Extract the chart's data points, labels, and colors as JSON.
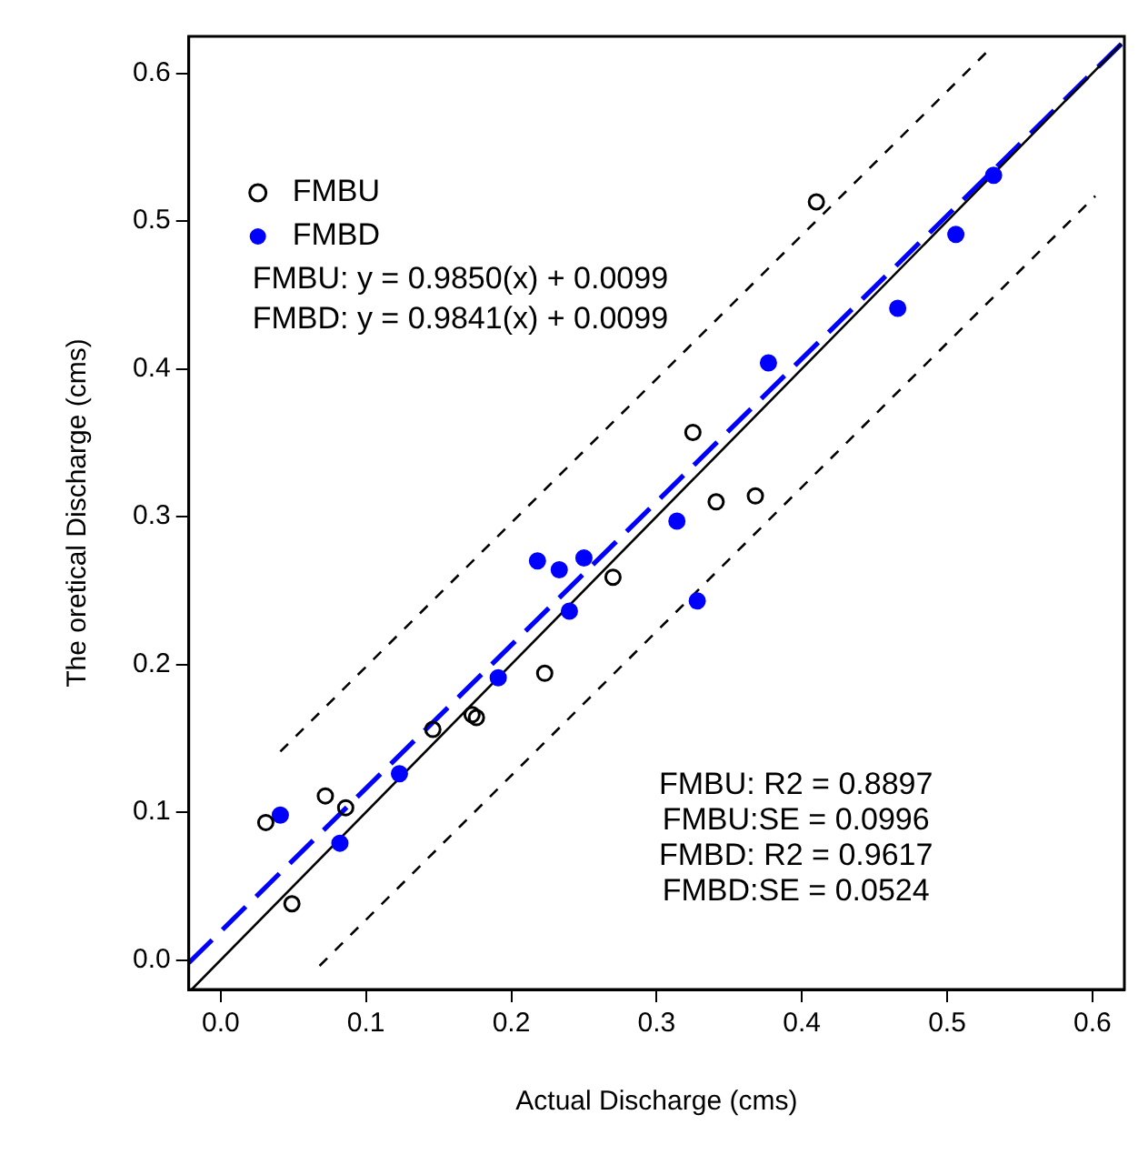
{
  "chart_data": {
    "type": "scatter",
    "xlabel": "Actual Discharge (cms)",
    "ylabel": "The oretical Discharge (cms)",
    "xlim": [
      -0.022,
      0.622
    ],
    "ylim": [
      -0.02,
      0.625
    ],
    "xticks": [
      {
        "value": 0,
        "label": "0.0"
      },
      0.1,
      0.2,
      0.3,
      0.4,
      0.5,
      0.6
    ],
    "yticks": [
      {
        "value": 0,
        "label": "0.0"
      },
      0.1,
      0.2,
      0.3,
      0.4,
      0.5,
      0.6
    ],
    "grid": false,
    "legend": "top left",
    "series": [
      {
        "name": "FMBU",
        "type": "scatter",
        "marker": "circle",
        "color": "#000000",
        "x": [
          0.031,
          0.072,
          0.086,
          0.049,
          0.146,
          0.173,
          0.176,
          0.223,
          0.27,
          0.41,
          0.325,
          0.341,
          0.368
        ],
        "values": [
          0.093,
          0.111,
          0.103,
          0.038,
          0.156,
          0.166,
          0.164,
          0.194,
          0.259,
          0.513,
          0.357,
          0.31,
          0.314
        ]
      },
      {
        "name": "FMBD",
        "type": "scatter",
        "marker": "circle",
        "color": "#0000ff",
        "x": [
          0.041,
          0.082,
          0.123,
          0.191,
          0.24,
          0.218,
          0.233,
          0.25,
          0.328,
          0.314,
          0.377,
          0.466,
          0.506,
          0.532
        ],
        "values": [
          0.098,
          0.079,
          0.126,
          0.191,
          0.236,
          0.27,
          0.264,
          0.272,
          0.243,
          0.297,
          0.404,
          0.441,
          0.491,
          0.531
        ]
      },
      {
        "type": "line",
        "marker": "none",
        "color": "#000000",
        "line_style": "solid",
        "x": [
          -0.02,
          0.62
        ],
        "values": [
          -0.02,
          0.62
        ]
      },
      {
        "type": "line",
        "marker": "none",
        "color": "#0000ff",
        "line_style": "dashed",
        "x": [
          -0.022,
          0.62
        ],
        "values": [
          -0.002,
          0.62
        ]
      },
      {
        "type": "line",
        "marker": "none",
        "color": "#000000",
        "line_style": "dotted",
        "x": [
          0.041,
          0.531
        ],
        "values": [
          0.141,
          0.618
        ]
      },
      {
        "type": "line",
        "marker": "none",
        "color": "#000000",
        "line_style": "dotted",
        "x": [
          0.068,
          0.602
        ],
        "values": [
          -0.004,
          0.517
        ]
      }
    ],
    "annotations": [
      "FMBU: y = 0.9850(x) + 0.0099",
      "FMBD: y = 0.9841(x) + 0.0099",
      "FMBU: R2 = 0.8897",
      "FMBU:SE = 0.0996",
      "FMBD: R2 = 0.9617",
      "FMBD:SE = 0.0524"
    ]
  }
}
